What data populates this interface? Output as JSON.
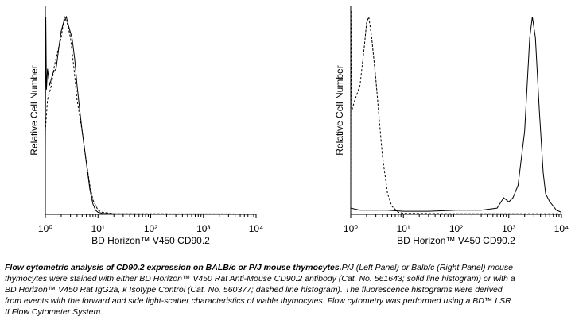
{
  "chart_data": [
    {
      "type": "line",
      "log_x": true,
      "xlabel": "BD Horizon™ V450 CD90.2",
      "ylabel": "Relative Cell Number",
      "xlim": [
        1,
        10000
      ],
      "xticks": [
        {
          "value": 1,
          "label": "10⁰"
        },
        {
          "value": 10,
          "label": "10¹"
        },
        {
          "value": 100,
          "label": "10²"
        },
        {
          "value": 1000,
          "label": "10³"
        },
        {
          "value": 10000,
          "label": "10⁴"
        }
      ],
      "ylim": [
        0,
        100
      ],
      "series": [
        {
          "color": "#000000",
          "line_style": "solid",
          "x": [
            1,
            1.02,
            1.05,
            1.1,
            1.2,
            1.4,
            1.6,
            1.8,
            2.0,
            2.2,
            2.5,
            2.8,
            3.2,
            3.6,
            4,
            4.5,
            5,
            6,
            7,
            8,
            9,
            10,
            12,
            20,
            100,
            1000,
            10000
          ],
          "values": [
            30,
            95,
            60,
            70,
            62,
            68,
            70,
            80,
            88,
            92,
            95,
            90,
            85,
            75,
            62,
            50,
            40,
            25,
            12,
            5,
            2,
            1,
            0.5,
            0.3,
            0.2,
            0.1,
            0.1
          ]
        },
        {
          "color": "#000000",
          "line_style": "dashed",
          "x": [
            1,
            1.1,
            1.3,
            1.5,
            1.7,
            2,
            2.3,
            2.6,
            3,
            3.5,
            4,
            5,
            6,
            7,
            8,
            10,
            12,
            20,
            10000
          ],
          "values": [
            40,
            55,
            62,
            72,
            78,
            85,
            95,
            92,
            85,
            70,
            55,
            40,
            25,
            14,
            7,
            2,
            1,
            0.3,
            0.2
          ]
        }
      ]
    },
    {
      "type": "line",
      "log_x": true,
      "xlabel": "BD Horizon™ V450 CD90.2",
      "ylabel": "Relative Cell Number",
      "xlim": [
        1,
        10000
      ],
      "xticks": [
        {
          "value": 1,
          "label": "10⁰"
        },
        {
          "value": 10,
          "label": "10¹"
        },
        {
          "value": 100,
          "label": "10²"
        },
        {
          "value": 1000,
          "label": "10³"
        },
        {
          "value": 10000,
          "label": "10⁴"
        }
      ],
      "ylim": [
        0,
        100
      ],
      "series": [
        {
          "color": "#000000",
          "line_style": "solid",
          "x": [
            1,
            1.5,
            2,
            3,
            5,
            10,
            30,
            100,
            300,
            600,
            800,
            1000,
            1200,
            1500,
            2000,
            2500,
            2800,
            3200,
            3800,
            4500,
            5000,
            6000,
            7000,
            8000,
            10000
          ],
          "values": [
            3,
            2,
            2,
            2,
            2,
            1.5,
            1.5,
            2,
            2,
            3,
            8,
            6,
            8,
            14,
            40,
            85,
            95,
            85,
            50,
            20,
            10,
            6,
            4,
            2,
            1
          ]
        },
        {
          "color": "#000000",
          "line_style": "dashed",
          "x": [
            1,
            1.01,
            1.05,
            1.2,
            1.5,
            1.8,
            2,
            2.2,
            2.5,
            3,
            3.5,
            4,
            5,
            6,
            8,
            10,
            100,
            10000
          ],
          "values": [
            5,
            98,
            50,
            55,
            62,
            80,
            92,
            95,
            85,
            65,
            45,
            28,
            10,
            4,
            1,
            0.5,
            0.3,
            0.3
          ]
        }
      ]
    }
  ],
  "caption": {
    "title": "Flow cytometric analysis of CD90.2 expression on BALB/c or P/J mouse thymocytes.",
    "text": "P/J (Left Panel) or Balb/c (Right Panel) mouse thymocytes were stained with either BD Horizon™ V450 Rat Anti-Mouse CD90.2 antibody (Cat. No. 561643; solid line histogram) or with a BD Horizon™ V450 Rat IgG2a, κ Isotype Control (Cat. No. 560377; dashed line histogram). The fluorescence histograms were derived from events with the forward and side light-scatter characteristics of viable thymocytes. Flow cytometry was performed using a BD™ LSR II Flow Cytometer System."
  }
}
